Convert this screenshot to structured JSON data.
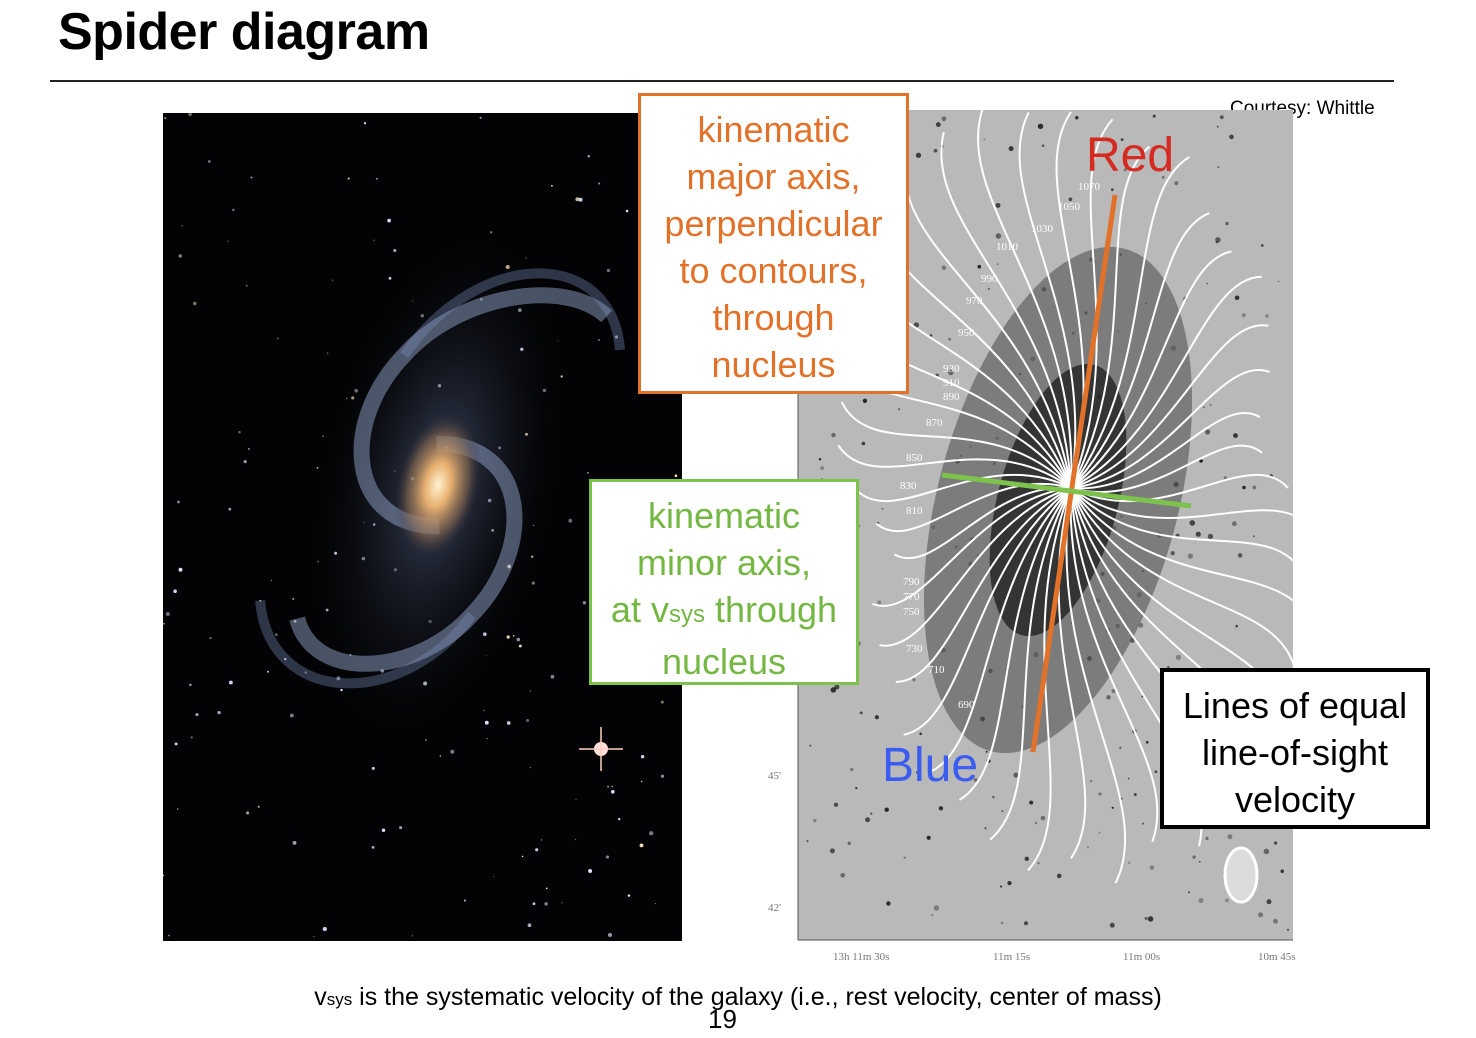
{
  "slide": {
    "title": "Spider diagram",
    "courtesy": "Courtesy: Whittle",
    "page_number": "19"
  },
  "labels": {
    "red": "Red",
    "blue": "Blue"
  },
  "boxes": {
    "major": [
      "kinematic",
      "major axis,",
      "perpendicular",
      "to contours,",
      "through",
      "nucleus"
    ],
    "minor": {
      "line1": "kinematic",
      "line2": "minor axis,",
      "line3_pre": "at v",
      "line3_sub": "sys",
      "line3_post": " through",
      "line4": "nucleus"
    },
    "lines": [
      "Lines of equal",
      "line-of-sight",
      "velocity"
    ]
  },
  "contour_labels": [
    "1070",
    "1050",
    "1030",
    "1010",
    "990",
    "970",
    "950",
    "930",
    "910",
    "890",
    "870",
    "850",
    "830",
    "810",
    "790",
    "770",
    "750",
    "730",
    "710",
    "690"
  ],
  "axis_ticks": {
    "x": [
      "13h 11m 30s",
      "11m 15s",
      "11m 00s",
      "10m 45s"
    ],
    "y": [
      "45'",
      "42'"
    ]
  },
  "caption": {
    "pre": "v",
    "sub": "sys",
    "post": " is the systematic velocity of the galaxy (i.e., rest velocity, center of mass)"
  },
  "colors": {
    "major": "#e2722a",
    "minor": "#7cc24d",
    "red": "#d42a1f",
    "blue": "#3a5cf0"
  }
}
